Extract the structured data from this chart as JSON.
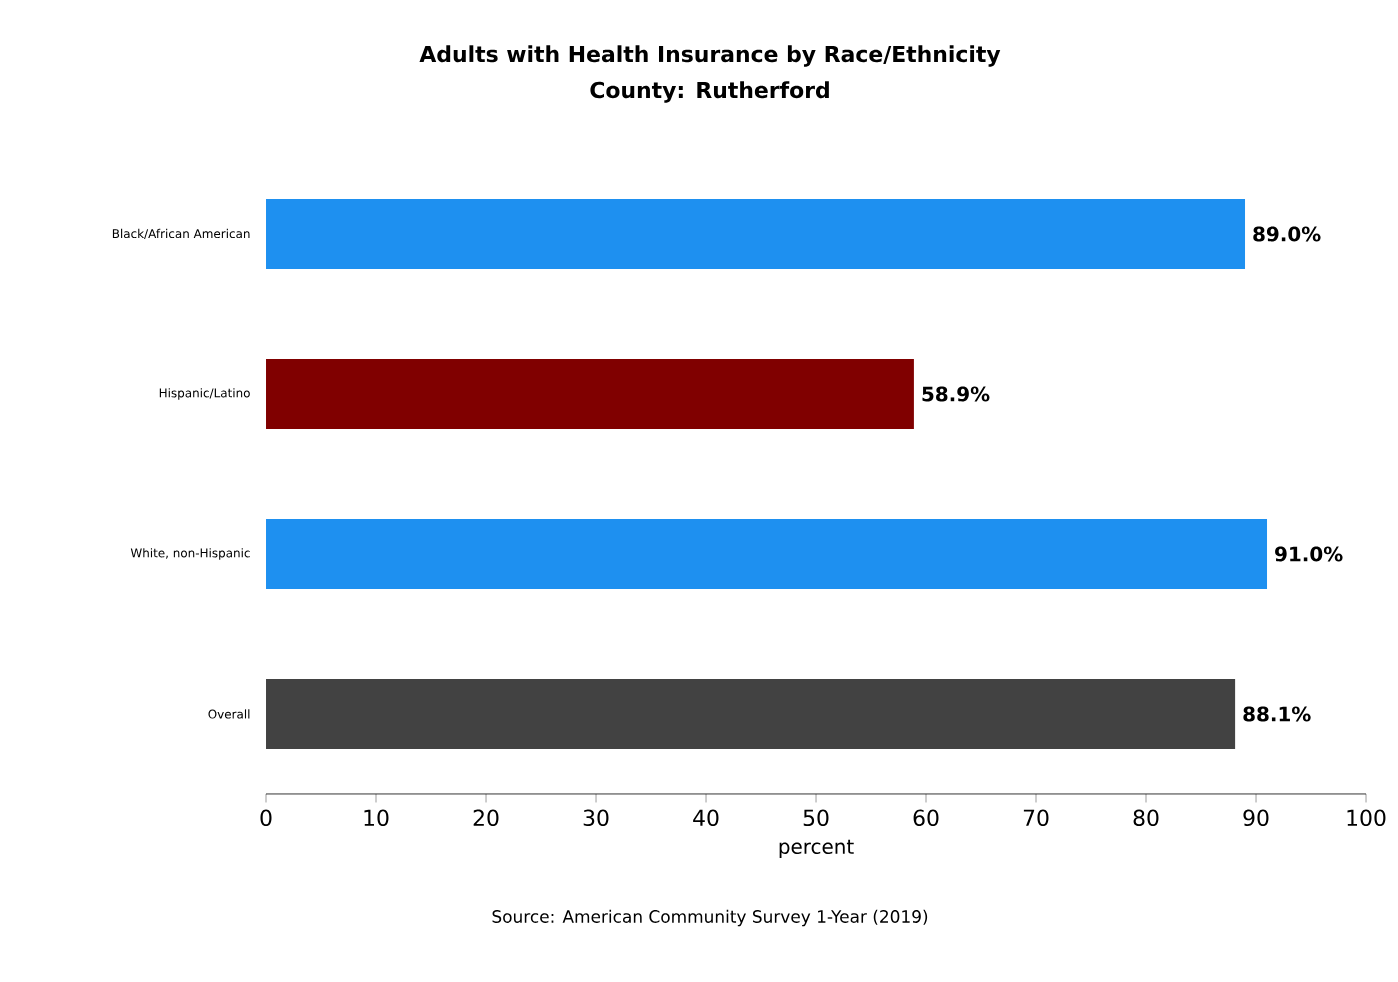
{
  "chart_data": {
    "type": "bar",
    "orientation": "horizontal",
    "title": "Adults with Health Insurance by Race/Ethnicity",
    "subtitle": "County: Rutherford",
    "xlabel": "percent",
    "categories": [
      "Black/African American",
      "Hispanic/Latino",
      "White, non-Hispanic",
      "Overall"
    ],
    "values": [
      89.0,
      58.9,
      91.0,
      88.1
    ],
    "value_labels": [
      "89.0%",
      "58.9%",
      "91.0%",
      "88.1%"
    ],
    "colors": [
      "#1e90f0",
      "#800000",
      "#1e90f0",
      "#424242"
    ],
    "xlim": [
      0,
      100
    ],
    "xticks": [
      0,
      10,
      20,
      30,
      40,
      50,
      60,
      70,
      80,
      90,
      100
    ],
    "annotations": [
      "Source: American Community Survey 1-Year (2019)"
    ]
  }
}
